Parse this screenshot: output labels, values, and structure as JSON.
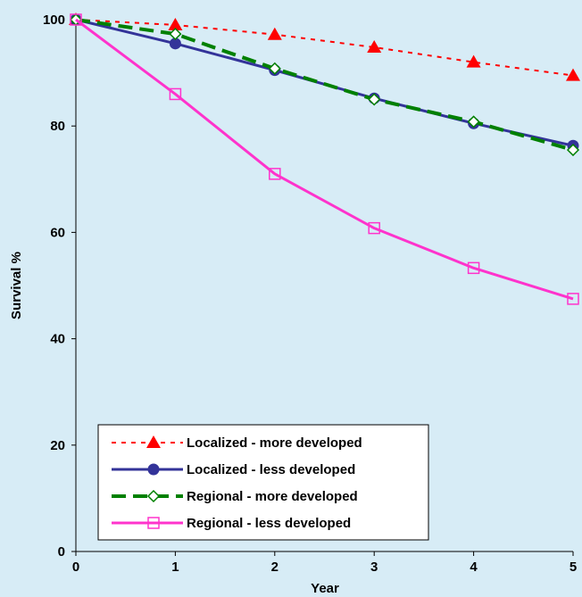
{
  "chart_data": {
    "type": "line",
    "title": "",
    "xlabel": "Year",
    "ylabel": "Survival %",
    "x": [
      0,
      1,
      2,
      3,
      4,
      5
    ],
    "xlim": [
      0,
      5
    ],
    "ylim": [
      0,
      100
    ],
    "xticks": [
      "0",
      "1",
      "2",
      "3",
      "4",
      "5"
    ],
    "yticks": [
      "0",
      "20",
      "40",
      "60",
      "80",
      "100"
    ],
    "grid": false,
    "legend_position": "bottom-left",
    "series": [
      {
        "name": "Localized - more developed",
        "values": [
          100,
          99,
          97.2,
          94.8,
          92,
          89.5
        ],
        "color": "#ff0000",
        "line_style": "dotted",
        "marker": "filled-triangle"
      },
      {
        "name": "Localized - less developed",
        "values": [
          100,
          95.5,
          90.5,
          85.2,
          80.5,
          76.3
        ],
        "color": "#333399",
        "line_style": "solid",
        "marker": "filled-circle"
      },
      {
        "name": "Regional - more developed",
        "values": [
          100,
          97.3,
          90.8,
          85,
          80.8,
          75.5
        ],
        "color": "#008000",
        "line_style": "dashed",
        "marker": "open-diamond"
      },
      {
        "name": "Regional - less developed",
        "values": [
          100,
          86,
          71,
          60.8,
          53.3,
          47.5
        ],
        "color": "#ff33cc",
        "line_style": "solid",
        "marker": "open-square"
      }
    ]
  }
}
